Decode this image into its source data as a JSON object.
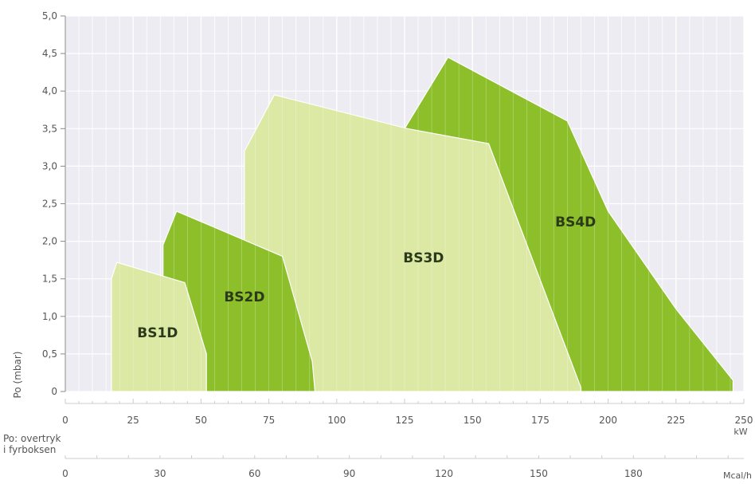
{
  "chart_data": {
    "type": "area",
    "ylabel": "Po (mbar)",
    "ylim": [
      0,
      5.0
    ],
    "y_ticks": [
      "0",
      "0,5",
      "1,0",
      "1,5",
      "2,0",
      "2,5",
      "3,0",
      "3,5",
      "4,0",
      "4,5",
      "5,0"
    ],
    "y_tick_values": [
      0,
      0.5,
      1.0,
      1.5,
      2.0,
      2.5,
      3.0,
      3.5,
      4.0,
      4.5,
      5.0
    ],
    "x_primary": {
      "unit": "kW",
      "range": [
        0,
        250
      ],
      "ticks": [
        "0",
        "25",
        "50",
        "75",
        "100",
        "125",
        "150",
        "175",
        "200",
        "225",
        "250"
      ],
      "tick_values": [
        0,
        25,
        50,
        75,
        100,
        125,
        150,
        175,
        200,
        225,
        250
      ]
    },
    "x_secondary": {
      "unit": "Mcal/h",
      "ticks": [
        "0",
        "30",
        "60",
        "90",
        "120",
        "150",
        "180"
      ],
      "tick_values": [
        0,
        30,
        60,
        90,
        120,
        150,
        180
      ]
    },
    "caption_line1": "Po: overtryk",
    "caption_line2": "i fyrboksen",
    "grid": true,
    "series": [
      {
        "name": "BS4D",
        "color": "#8cbf2a",
        "label_at": [
          188,
          2.2
        ],
        "points": [
          [
            110,
            2.8
          ],
          [
            125,
            3.5
          ],
          [
            141,
            4.45
          ],
          [
            185,
            3.6
          ],
          [
            200,
            2.4
          ],
          [
            225,
            1.1
          ],
          [
            246,
            0.15
          ],
          [
            246,
            0
          ],
          [
            110,
            0
          ]
        ]
      },
      {
        "name": "BS3D",
        "color": "#dbe9a4",
        "label_at": [
          132,
          1.72
        ],
        "points": [
          [
            66,
            3.2
          ],
          [
            77,
            3.95
          ],
          [
            126,
            3.5
          ],
          [
            156,
            3.3
          ],
          [
            190,
            0.05
          ],
          [
            190,
            0
          ],
          [
            66,
            0
          ]
        ]
      },
      {
        "name": "BS2D",
        "color": "#8cbf2a",
        "label_at": [
          66,
          1.2
        ],
        "points": [
          [
            36,
            1.95
          ],
          [
            41,
            2.4
          ],
          [
            80,
            1.8
          ],
          [
            91,
            0.4
          ],
          [
            92,
            0
          ],
          [
            36,
            0
          ]
        ]
      },
      {
        "name": "BS1D",
        "color": "#dbe9a4",
        "label_at": [
          34,
          0.72
        ],
        "points": [
          [
            17,
            1.5
          ],
          [
            19,
            1.72
          ],
          [
            44,
            1.45
          ],
          [
            52,
            0.5
          ],
          [
            52,
            0
          ],
          [
            17,
            0
          ]
        ]
      }
    ]
  }
}
